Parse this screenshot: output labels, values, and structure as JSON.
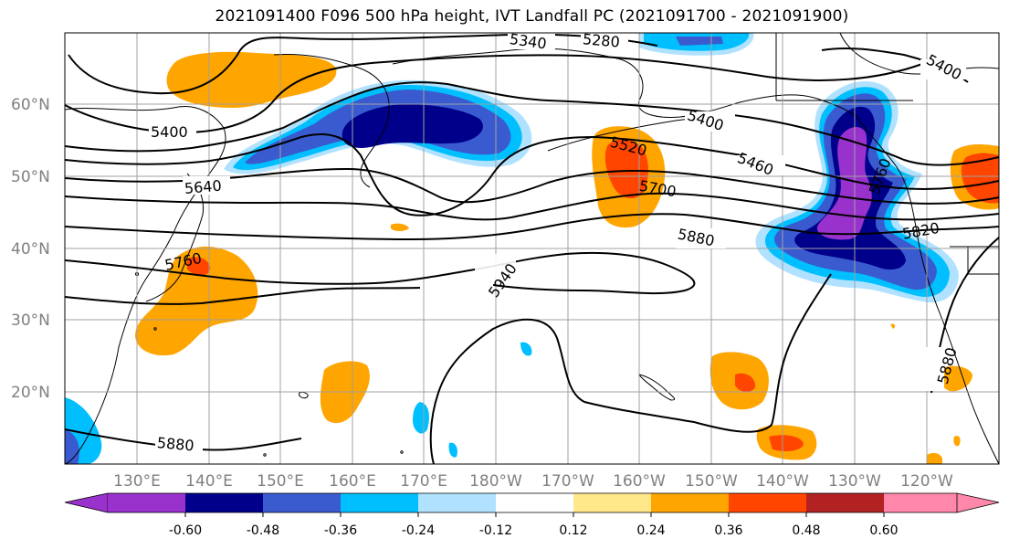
{
  "title": "2021091400 F096 500 hPa height, IVT Landfall PC (2021091700 - 2021091900)",
  "lat_labels": [
    "60°N",
    "50°N",
    "40°N",
    "30°N",
    "20°N"
  ],
  "lon_labels": [
    "130°E",
    "140°E",
    "150°E",
    "160°E",
    "170°E",
    "180°W",
    "170°W",
    "160°W",
    "150°W",
    "140°W",
    "130°W",
    "120°W"
  ],
  "contour_labels": [
    "5340",
    "5280",
    "5400",
    "5400",
    "5640",
    "5400",
    "5460",
    "5520",
    "5700",
    "5880",
    "5760",
    "5940",
    "5820",
    "5880",
    "5880",
    "5760"
  ],
  "colorbar": {
    "ticks": [
      "-0.60",
      "-0.48",
      "-0.36",
      "-0.24",
      "-0.12",
      "0.12",
      "0.24",
      "0.36",
      "0.48",
      "0.60"
    ],
    "colors": [
      "#9932cc",
      "#00008b",
      "#3a5bcf",
      "#00bfff",
      "#b0e2ff",
      "#ffffff",
      "#ffe88a",
      "#ffa500",
      "#ff4500",
      "#b22222",
      "#ff88aa"
    ]
  },
  "colors": {
    "purple": "#9932cc",
    "navy": "#00008b",
    "royal": "#3a5bcf",
    "sky": "#00bfff",
    "lightblue": "#b0e2ff",
    "paleyellow": "#ffe88a",
    "orange": "#ffa500",
    "red": "#ff4500",
    "grid": "#a0a0a0"
  }
}
